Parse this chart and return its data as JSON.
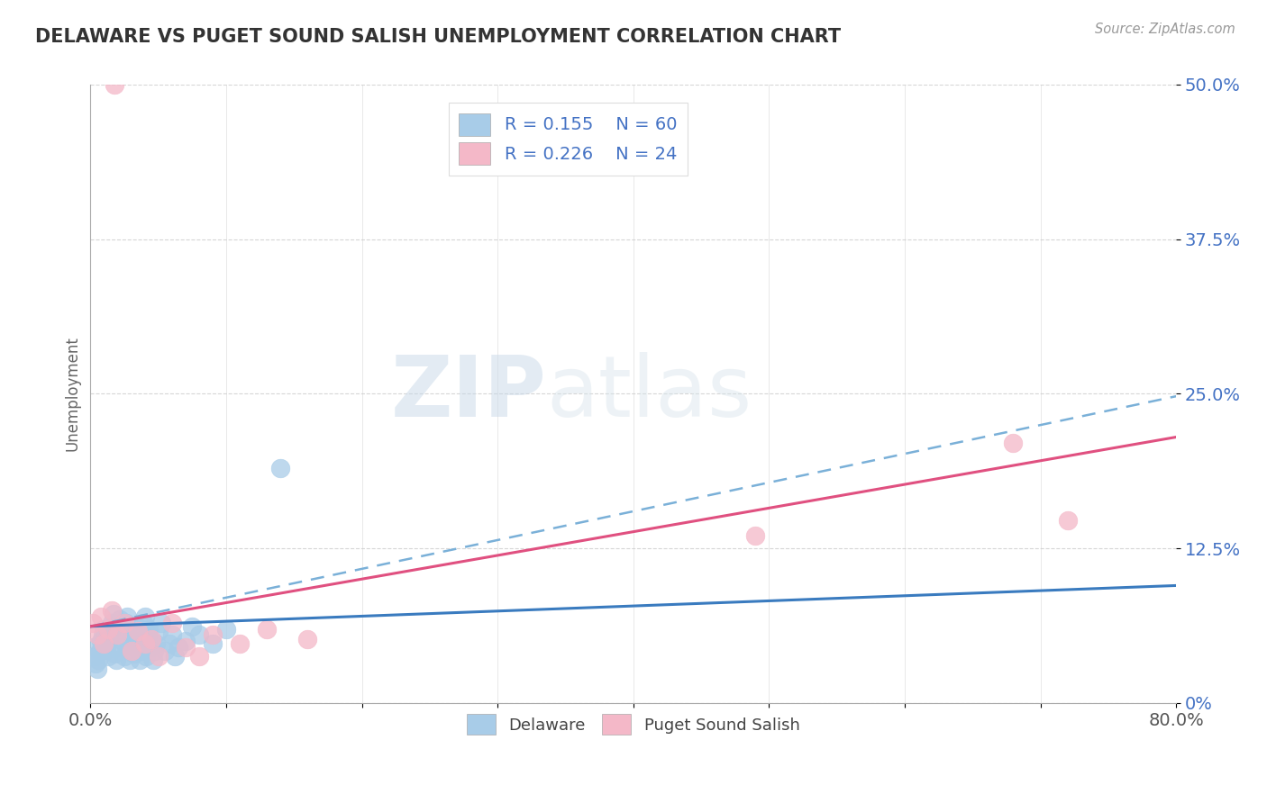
{
  "title": "DELAWARE VS PUGET SOUND SALISH UNEMPLOYMENT CORRELATION CHART",
  "source": "Source: ZipAtlas.com",
  "ylabel": "Unemployment",
  "yticks": [
    "0%",
    "12.5%",
    "25.0%",
    "37.5%",
    "50.0%"
  ],
  "ytick_vals": [
    0.0,
    0.125,
    0.25,
    0.375,
    0.5
  ],
  "xlim": [
    0.0,
    0.8
  ],
  "ylim": [
    0.0,
    0.5
  ],
  "delaware_R": 0.155,
  "delaware_N": 60,
  "puget_R": 0.226,
  "puget_N": 24,
  "delaware_color": "#a8cce8",
  "puget_color": "#f4b8c8",
  "delaware_line_color": "#3a7bbf",
  "puget_line_color": "#e05080",
  "dashed_line_color": "#7ab0d8",
  "watermark_text": "ZIPatlas",
  "background_color": "#ffffff",
  "del_x": [
    0.002,
    0.003,
    0.004,
    0.005,
    0.006,
    0.007,
    0.008,
    0.009,
    0.01,
    0.011,
    0.012,
    0.013,
    0.014,
    0.015,
    0.016,
    0.017,
    0.018,
    0.019,
    0.02,
    0.021,
    0.022,
    0.023,
    0.024,
    0.025,
    0.026,
    0.027,
    0.028,
    0.029,
    0.03,
    0.031,
    0.032,
    0.033,
    0.034,
    0.035,
    0.036,
    0.037,
    0.038,
    0.039,
    0.04,
    0.041,
    0.042,
    0.043,
    0.044,
    0.045,
    0.046,
    0.047,
    0.048,
    0.05,
    0.052,
    0.055,
    0.058,
    0.06,
    0.062,
    0.065,
    0.07,
    0.075,
    0.08,
    0.09,
    0.1,
    0.14
  ],
  "del_y": [
    0.045,
    0.038,
    0.032,
    0.028,
    0.035,
    0.042,
    0.05,
    0.055,
    0.06,
    0.048,
    0.043,
    0.038,
    0.052,
    0.058,
    0.065,
    0.072,
    0.04,
    0.035,
    0.055,
    0.06,
    0.068,
    0.045,
    0.05,
    0.038,
    0.065,
    0.07,
    0.048,
    0.035,
    0.052,
    0.058,
    0.04,
    0.045,
    0.062,
    0.055,
    0.035,
    0.042,
    0.048,
    0.065,
    0.07,
    0.038,
    0.055,
    0.06,
    0.045,
    0.05,
    0.035,
    0.042,
    0.048,
    0.058,
    0.065,
    0.042,
    0.048,
    0.055,
    0.038,
    0.045,
    0.05,
    0.062,
    0.055,
    0.048,
    0.06,
    0.19
  ],
  "pug_x": [
    0.002,
    0.005,
    0.008,
    0.01,
    0.013,
    0.016,
    0.02,
    0.025,
    0.03,
    0.035,
    0.04,
    0.045,
    0.05,
    0.06,
    0.07,
    0.08,
    0.09,
    0.11,
    0.13,
    0.16,
    0.49,
    0.68,
    0.72,
    0.018
  ],
  "pug_y": [
    0.065,
    0.055,
    0.07,
    0.048,
    0.06,
    0.075,
    0.055,
    0.065,
    0.042,
    0.058,
    0.048,
    0.052,
    0.038,
    0.065,
    0.045,
    0.038,
    0.055,
    0.048,
    0.06,
    0.052,
    0.135,
    0.21,
    0.148,
    0.5
  ],
  "blue_line_x0": 0.0,
  "blue_line_x1": 0.8,
  "blue_line_y0": 0.062,
  "blue_line_y1": 0.095,
  "pink_line_x0": 0.0,
  "pink_line_x1": 0.8,
  "pink_line_y0": 0.062,
  "pink_line_y1": 0.215,
  "dash_line_x0": 0.0,
  "dash_line_x1": 0.8,
  "dash_line_y0": 0.062,
  "dash_line_y1": 0.248
}
